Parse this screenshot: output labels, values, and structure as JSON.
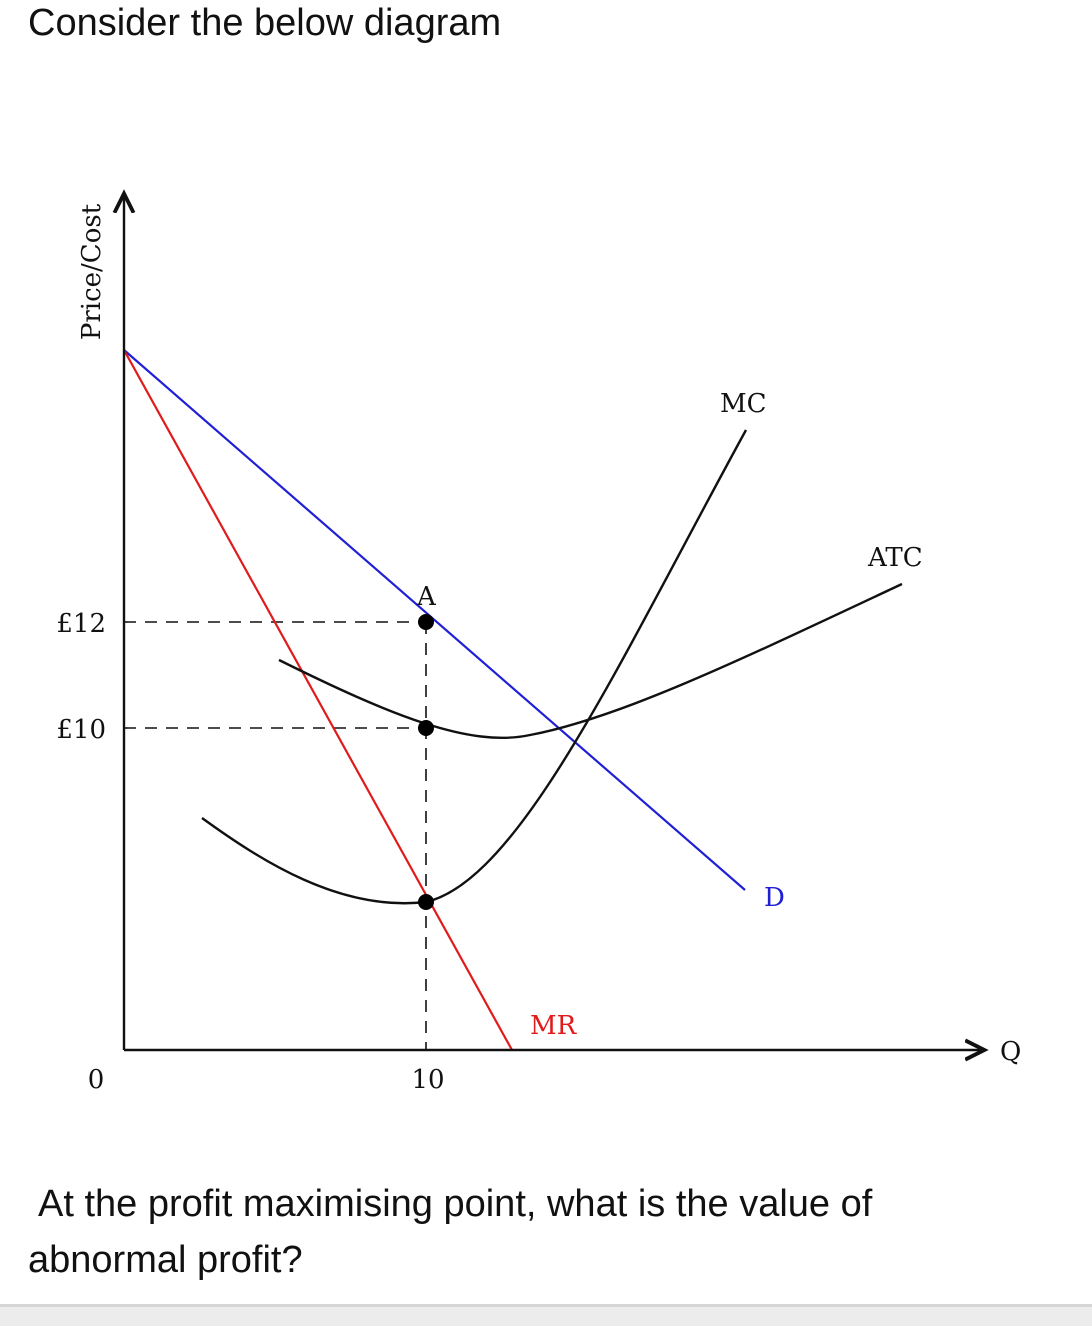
{
  "intro_text": "Consider the below diagram",
  "question_text": "At the profit maximising point, what is the value of abnormal profit?",
  "diagram": {
    "y_axis_label": "Price/Cost",
    "x_axis_label": "Q",
    "origin_label": "0",
    "price_ticks": [
      "£12",
      "£10"
    ],
    "quantity_tick": "10",
    "point_label": "A",
    "curve_labels": {
      "mc": "MC",
      "atc": "ATC",
      "demand": "D",
      "mr": "MR"
    },
    "colors": {
      "demand": "#1f1fd6",
      "mr": "#e01b1b",
      "mc": "#111111",
      "atc": "#111111",
      "axes": "#111111"
    }
  }
}
